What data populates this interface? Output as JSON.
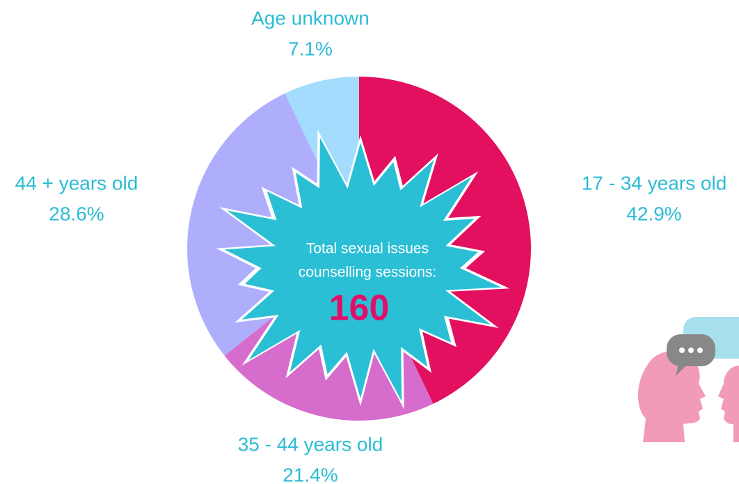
{
  "chart_data": {
    "type": "pie",
    "categories": [
      "17 - 34 years old",
      "35 - 44 years old",
      "44 + years old",
      "Age unknown"
    ],
    "values": [
      42.9,
      21.4,
      28.6,
      7.1
    ],
    "value_labels": [
      "42.9%",
      "21.4%",
      "28.6%",
      "7.1%"
    ],
    "colors": [
      "#e31060",
      "#d66ccb",
      "#aeaefd",
      "#a3dcfc"
    ],
    "center_text": [
      "Total sexual issues",
      "counselling sessions:"
    ],
    "total": 160
  }
}
